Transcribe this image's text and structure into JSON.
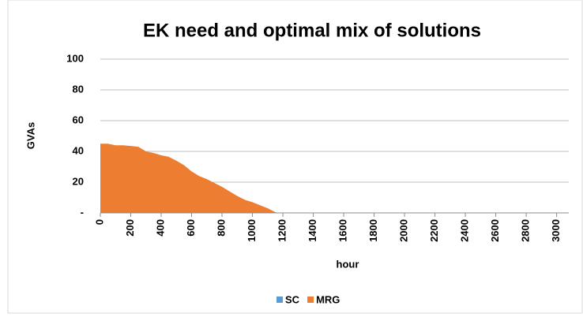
{
  "chart_data": {
    "type": "area",
    "title": "EK need and optimal mix of solutions",
    "x_label": "hour",
    "y_label": "GVAs",
    "x": [
      0,
      50,
      100,
      150,
      200,
      250,
      300,
      350,
      400,
      450,
      500,
      550,
      600,
      650,
      700,
      750,
      800,
      850,
      900,
      950,
      1000,
      1050,
      1100,
      1150,
      1170
    ],
    "series": [
      {
        "name": "SC",
        "color": "#5b9bd5",
        "values": [
          0,
          0,
          0,
          0,
          0,
          0,
          0,
          0,
          0,
          0,
          0,
          0,
          0,
          0,
          0,
          0,
          0,
          0,
          0,
          0,
          0,
          0,
          0,
          0,
          0
        ]
      },
      {
        "name": "MRG",
        "color": "#ed7d31",
        "values": [
          45,
          45,
          44,
          44,
          43.5,
          43,
          40,
          39,
          37.5,
          36.5,
          34,
          31,
          27,
          24,
          22,
          19.5,
          17,
          14,
          11,
          8.5,
          7,
          5,
          3,
          0.5,
          0
        ]
      }
    ],
    "xlim": [
      0,
      3080
    ],
    "xticks": [
      0,
      200,
      400,
      600,
      800,
      1000,
      1200,
      1400,
      1600,
      1800,
      2000,
      2200,
      2400,
      2600,
      2800,
      3000
    ],
    "ylim": [
      0,
      100
    ],
    "yticks": [
      {
        "value": 0,
        "label": "-"
      },
      20,
      40,
      60,
      80,
      100
    ],
    "grid": true,
    "legend": "bottom"
  }
}
